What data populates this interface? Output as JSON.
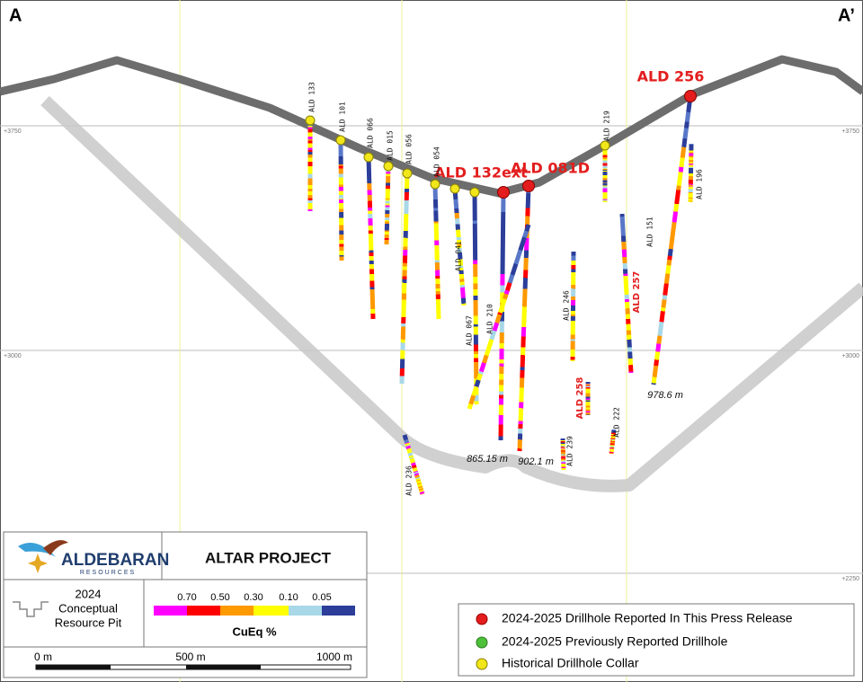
{
  "section": {
    "start": "A",
    "end": "A’"
  },
  "elevations": {
    "left": [
      "+3750",
      "+3000"
    ],
    "right": [
      "+3750",
      "+3000",
      "+2250"
    ]
  },
  "drillholes": [
    {
      "label": "ALD 256"
    },
    {
      "label": "ALD 132ext"
    },
    {
      "label": "ALD 081D"
    },
    {
      "label": "ALD 133"
    },
    {
      "label": "ALD 101"
    },
    {
      "label": "ALD 066"
    },
    {
      "label": "ALD 015"
    },
    {
      "label": "ALD 056"
    },
    {
      "label": "ALD 054"
    },
    {
      "label": "ALD 041"
    },
    {
      "label": "ALD 067"
    },
    {
      "label": "ALD 210"
    },
    {
      "label": "ALD 219"
    },
    {
      "label": "ALD 196"
    },
    {
      "label": "ALD 151"
    },
    {
      "label": "ALD 257"
    },
    {
      "label": "ALD 246"
    },
    {
      "label": "ALD 258"
    },
    {
      "label": "ALD 222"
    },
    {
      "label": "ALD 239"
    },
    {
      "label": "ALD 236"
    }
  ],
  "depths": [
    "865.15 m",
    "902.1 m",
    "978.6 m"
  ],
  "panel": {
    "company": "ALDEBARAN",
    "tagline": "RESOURCES",
    "project": "ALTAR PROJECT",
    "pit": [
      "2024",
      "Conceptual",
      "Resource Pit"
    ],
    "scale_labels": [
      "0.70",
      "0.50",
      "0.30",
      "0.10",
      "0.05"
    ],
    "scale_title": "CuEq %",
    "distance": [
      "0 m",
      "500 m",
      "1000 m"
    ]
  },
  "legend": [
    "2024-2025 Drillhole Reported In This Press Release",
    "2024-2025 Previously Reported Drillhole",
    "Historical Drillhole Collar"
  ]
}
